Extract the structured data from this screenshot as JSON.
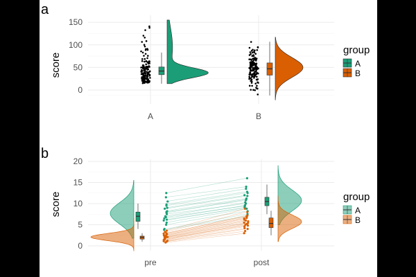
{
  "colors": {
    "A": "#1b9e77",
    "B": "#d95f02",
    "grid": "#ebebeb",
    "tick_text": "#4d4d4d"
  },
  "panels": [
    {
      "tag": "a",
      "ylabel": "score",
      "legend_title": "group",
      "legend_items": [
        "A",
        "B"
      ]
    },
    {
      "tag": "b",
      "ylabel": "score",
      "legend_title": "group",
      "legend_items": [
        "A",
        "B"
      ]
    }
  ],
  "chart_data": [
    {
      "type": "raincloud",
      "tag": "a",
      "categories": [
        "A",
        "B"
      ],
      "ylabel": "score",
      "xlabel": "",
      "yticks": [
        0,
        50,
        100,
        150
      ],
      "ylim": [
        -25,
        160
      ],
      "grid": true,
      "legend": {
        "title": "group",
        "entries": [
          "A",
          "B"
        ],
        "position": "right"
      },
      "series": [
        {
          "name": "A",
          "category": "A",
          "n_points": 150,
          "box": {
            "min": 14,
            "q1": 34,
            "median": 42,
            "q3": 51,
            "max": 83
          },
          "density_peak": 38,
          "range": [
            14,
            155
          ],
          "skew": "right"
        },
        {
          "name": "B",
          "category": "B",
          "n_points": 150,
          "box": {
            "min": -12,
            "q1": 33,
            "median": 47,
            "q3": 60,
            "max": 107
          },
          "density_peak": 50,
          "range": [
            -22,
            117
          ],
          "skew": "none"
        }
      ]
    },
    {
      "type": "raincloud",
      "tag": "b",
      "categories": [
        "pre",
        "post"
      ],
      "ylabel": "score",
      "xlabel": "",
      "yticks": [
        0,
        5,
        10,
        15,
        20
      ],
      "ylim": [
        -1,
        21
      ],
      "grid": true,
      "paired": true,
      "legend": {
        "title": "group",
        "entries": [
          "A",
          "B"
        ],
        "position": "right"
      },
      "series": [
        {
          "name": "A",
          "pre": {
            "points": [
              7.5,
              6.8,
              9.0,
              5.5,
              8.2,
              6.0,
              10.5,
              7.0,
              4.0,
              11.5,
              8.8,
              6.5,
              9.5,
              5.0,
              7.8,
              12.5,
              8.0,
              6.2,
              3.8,
              9.8
            ],
            "box": {
              "min": 4,
              "q1": 5.8,
              "median": 7,
              "q3": 8,
              "max": 10
            }
          },
          "post": {
            "points": [
              10.0,
              9.5,
              12.0,
              8.8,
              11.2,
              9.2,
              13.5,
              10.3,
              7.5,
              14.0,
              11.8,
              9.6,
              12.5,
              8.2,
              11.0,
              16.0,
              10.8,
              9.0,
              7.0,
              12.8
            ],
            "box": {
              "min": 7.5,
              "q1": 9.5,
              "median": 10.5,
              "q3": 11.5,
              "max": 14.5
            }
          }
        },
        {
          "name": "B",
          "pre": {
            "points": [
              2.0,
              1.5,
              2.5,
              3.0,
              1.8,
              2.2,
              1.0,
              2.8,
              0.8,
              3.3,
              1.6,
              2.4,
              1.2,
              2.9,
              2.1,
              1.4,
              3.6,
              1.9,
              2.6,
              1.1
            ],
            "box": {
              "min": 1,
              "q1": 1.6,
              "median": 2,
              "q3": 2.3,
              "max": 3
            }
          },
          "post": {
            "points": [
              5.5,
              5.0,
              6.5,
              7.0,
              4.8,
              6.0,
              3.5,
              6.8,
              3.0,
              8.0,
              5.2,
              6.2,
              4.2,
              7.2,
              5.8,
              4.6,
              8.8,
              5.4,
              6.6,
              4.0
            ],
            "box": {
              "min": 2.5,
              "q1": 4.3,
              "median": 5.3,
              "q3": 6.6,
              "max": 8.3
            }
          }
        }
      ]
    }
  ]
}
